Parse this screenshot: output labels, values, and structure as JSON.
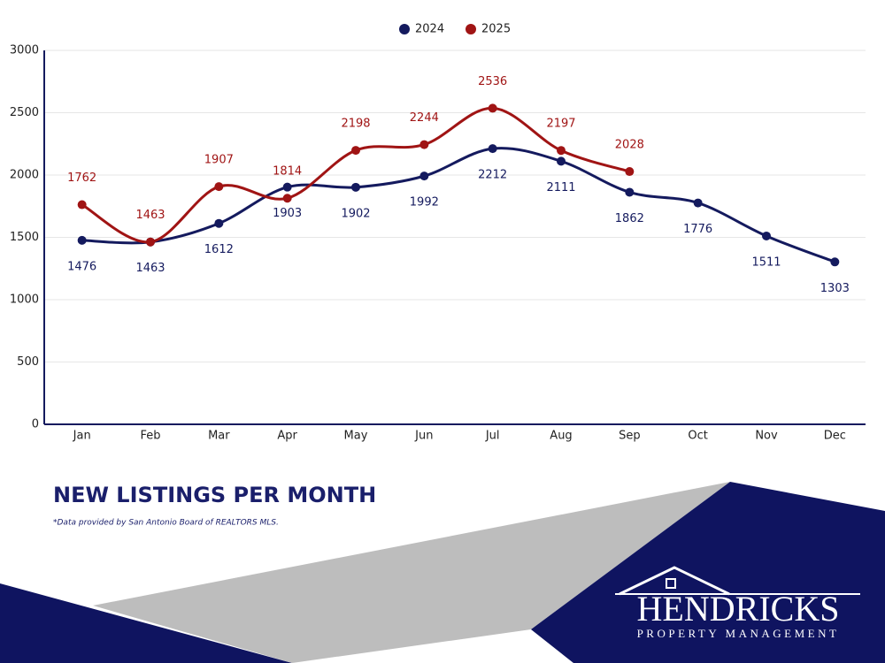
{
  "chart_data": {
    "type": "line",
    "title": "NEW LISTINGS PER MONTH",
    "note": "*Data provided by San Antonio Board of REALTORS MLS.",
    "categories": [
      "Jan",
      "Feb",
      "Mar",
      "Apr",
      "May",
      "Jun",
      "Jul",
      "Aug",
      "Sep",
      "Oct",
      "Nov",
      "Dec"
    ],
    "series": [
      {
        "name": "2024",
        "color": "#141a5e",
        "values": [
          1476,
          1463,
          1612,
          1903,
          1902,
          1992,
          2212,
          2111,
          1862,
          1776,
          1511,
          1303
        ]
      },
      {
        "name": "2025",
        "color": "#a01414",
        "values": [
          1762,
          1463,
          1907,
          1814,
          2198,
          2244,
          2536,
          2197,
          2028,
          null,
          null,
          null
        ]
      }
    ],
    "ylim": [
      0,
      3000
    ],
    "yticks": [
      0,
      500,
      1000,
      1500,
      2000,
      2500,
      3000
    ],
    "grid": true,
    "legend": "top"
  },
  "logo": {
    "name": "HENDRICKS",
    "tagline": "PROPERTY MANAGEMENT"
  }
}
